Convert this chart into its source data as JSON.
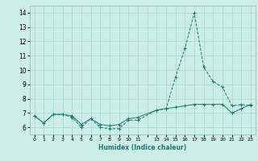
{
  "title": "",
  "xlabel": "Humidex (Indice chaleur)",
  "ylabel": "",
  "bg_color": "#cceee8",
  "line_color": "#1a7a6e",
  "grid_color": "#aad4ce",
  "xlim": [
    -0.5,
    23.5
  ],
  "ylim": [
    5.5,
    14.5
  ],
  "yticks": [
    6,
    7,
    8,
    9,
    10,
    11,
    12,
    13,
    14
  ],
  "xtick_labels": [
    "0",
    "1",
    "2",
    "3",
    "4",
    "5",
    "6",
    "7",
    "8",
    "9",
    "10",
    "11",
    "",
    "13",
    "14",
    "15",
    "16",
    "17",
    "18",
    "19",
    "20",
    "21",
    "22",
    "23"
  ],
  "line1_x": [
    0,
    1,
    2,
    3,
    4,
    5,
    6,
    7,
    8,
    9,
    10,
    11,
    13,
    14,
    15,
    16,
    17,
    18,
    19,
    20,
    21,
    22,
    23
  ],
  "line1_y": [
    6.8,
    6.3,
    6.9,
    6.9,
    6.7,
    6.0,
    6.6,
    6.0,
    5.9,
    5.9,
    6.5,
    6.5,
    7.2,
    7.3,
    9.5,
    11.5,
    14.0,
    10.2,
    9.2,
    8.8,
    7.5,
    7.6,
    7.5
  ],
  "line2_x": [
    0,
    1,
    2,
    3,
    4,
    5,
    6,
    7,
    8,
    9,
    10,
    11,
    13,
    14,
    15,
    16,
    17,
    18,
    19,
    20,
    21,
    22,
    23
  ],
  "line2_y": [
    6.8,
    6.3,
    6.9,
    6.9,
    6.8,
    6.2,
    6.6,
    6.2,
    6.1,
    6.2,
    6.6,
    6.7,
    7.2,
    7.3,
    7.4,
    7.5,
    7.6,
    7.6,
    7.6,
    7.6,
    7.0,
    7.3,
    7.6
  ]
}
